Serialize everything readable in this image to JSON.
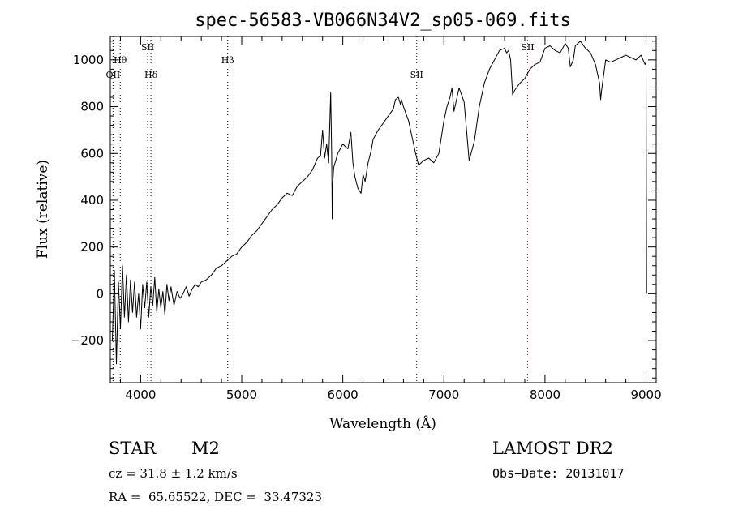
{
  "chart_data": {
    "type": "line",
    "title": "spec-56583-VB066N34V2_sp05-069.fits",
    "xlabel": "Wavelength (Å)",
    "ylabel": "Flux (relative)",
    "xlim": [
      3700,
      9100
    ],
    "ylim": [
      -380,
      1100
    ],
    "x_ticks": [
      4000,
      5000,
      6000,
      7000,
      8000,
      9000
    ],
    "y_ticks": [
      -200,
      0,
      200,
      400,
      600,
      800,
      1000
    ],
    "x_tick_labels": [
      "4000",
      "5000",
      "6000",
      "7000",
      "8000",
      "9000"
    ],
    "y_tick_labels": [
      "−200",
      "0",
      "200",
      "400",
      "600",
      "800",
      "1000"
    ],
    "grid": false,
    "series": [
      {
        "x": [
          3720,
          3740,
          3760,
          3780,
          3800,
          3820,
          3840,
          3860,
          3880,
          3900,
          3920,
          3940,
          3960,
          3980,
          4000,
          4020,
          4040,
          4060,
          4080,
          4100,
          4120,
          4140,
          4160,
          4180,
          4200,
          4220,
          4240,
          4260,
          4280,
          4300,
          4330,
          4360,
          4390,
          4420,
          4450,
          4480,
          4510,
          4540,
          4570,
          4600,
          4650,
          4700,
          4750,
          4800,
          4850,
          4900,
          4950,
          5000,
          5050,
          5100,
          5150,
          5200,
          5250,
          5300,
          5350,
          5400,
          5450,
          5500,
          5550,
          5600,
          5650,
          5700,
          5750,
          5780,
          5800,
          5820,
          5840,
          5860,
          5880,
          5890,
          5895,
          5900,
          5910,
          5950,
          6000,
          6050,
          6080,
          6100,
          6120,
          6150,
          6180,
          6200,
          6220,
          6250,
          6280,
          6300,
          6350,
          6400,
          6450,
          6500,
          6520,
          6550,
          6570,
          6580,
          6600,
          6650,
          6700,
          6720,
          6750,
          6800,
          6850,
          6900,
          6950,
          7000,
          7030,
          7060,
          7080,
          7100,
          7120,
          7150,
          7200,
          7250,
          7300,
          7350,
          7400,
          7450,
          7500,
          7550,
          7600,
          7620,
          7640,
          7660,
          7680,
          7700,
          7750,
          7800,
          7850,
          7900,
          7950,
          8000,
          8050,
          8100,
          8150,
          8200,
          8230,
          8250,
          8280,
          8300,
          8350,
          8400,
          8450,
          8500,
          8540,
          8550,
          8560,
          8600,
          8650,
          8700,
          8750,
          8800,
          8850,
          8900,
          8950,
          8990,
          9000,
          9005
        ],
        "y": [
          -200,
          100,
          -300,
          50,
          -150,
          120,
          -100,
          80,
          -120,
          60,
          -80,
          50,
          -100,
          0,
          -150,
          40,
          -60,
          50,
          -100,
          30,
          -50,
          70,
          -80,
          20,
          -60,
          10,
          -90,
          40,
          -30,
          30,
          -50,
          10,
          -20,
          0,
          30,
          -10,
          20,
          40,
          30,
          50,
          60,
          80,
          110,
          120,
          140,
          160,
          170,
          200,
          220,
          250,
          270,
          300,
          330,
          360,
          380,
          410,
          430,
          420,
          460,
          480,
          500,
          530,
          580,
          590,
          700,
          580,
          640,
          560,
          860,
          600,
          320,
          470,
          540,
          600,
          640,
          620,
          690,
          560,
          500,
          450,
          430,
          510,
          480,
          560,
          610,
          660,
          700,
          730,
          760,
          790,
          830,
          840,
          810,
          830,
          800,
          740,
          640,
          600,
          550,
          570,
          580,
          560,
          600,
          740,
          800,
          840,
          880,
          780,
          820,
          880,
          820,
          570,
          650,
          800,
          900,
          960,
          1000,
          1040,
          1050,
          1030,
          1040,
          1000,
          850,
          870,
          900,
          920,
          960,
          980,
          990,
          1050,
          1060,
          1040,
          1030,
          1070,
          1050,
          970,
          1000,
          1060,
          1080,
          1050,
          1030,
          980,
          900,
          830,
          870,
          1000,
          990,
          1000,
          1010,
          1020,
          1010,
          1000,
          1020,
          980,
          990,
          0
        ]
      }
    ],
    "annotations": [
      {
        "label": "OII",
        "x": 3727,
        "row": 3,
        "color": "#000000"
      },
      {
        "label": "Hθ",
        "x": 3798,
        "row": 2,
        "color": "#000000"
      },
      {
        "label": "SII",
        "x": 4070,
        "row": 1,
        "color": "#000000"
      },
      {
        "label": "Hδ",
        "x": 4102,
        "row": 3,
        "color": "#000000"
      },
      {
        "label": "Hβ",
        "x": 4861,
        "row": 2,
        "color": "#000000"
      },
      {
        "label": "SII",
        "x": 6731,
        "row": 3,
        "color": "#000000"
      },
      {
        "label": "SII",
        "x": 7828,
        "row": 1,
        "color": "#ff0000"
      }
    ]
  },
  "info": {
    "class": "STAR",
    "subclass": "M2",
    "survey": "LAMOST DR2",
    "cz": "cz = 31.8 ± 1.2 km/s",
    "obs_date": "Obs−Date: 20131017",
    "coords": "RA =  65.65522, DEC =  33.47323"
  }
}
